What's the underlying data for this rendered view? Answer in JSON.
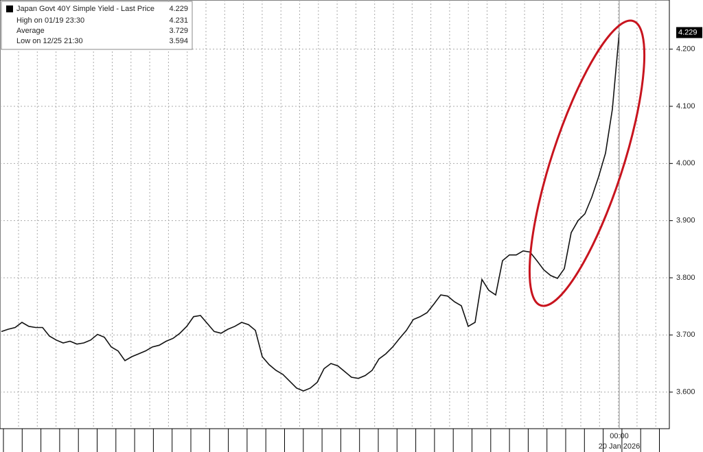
{
  "chart_data": {
    "type": "line",
    "legend": {
      "title": "Japan Govt 40Y Simple Yield - Last Price",
      "last": 4.229,
      "rows": [
        {
          "label": "High on 01/19 23:30",
          "value": 4.231
        },
        {
          "label": "Average",
          "value": 3.729
        },
        {
          "label": "Low on 12/25 21:30",
          "value": 3.594
        }
      ]
    },
    "date_label": "20 Jan 2026",
    "categories": [
      null,
      null,
      null,
      null,
      null,
      null,
      null,
      null,
      null,
      null,
      null,
      null,
      null,
      null,
      null,
      null,
      null,
      null,
      null,
      null,
      null,
      null,
      null,
      null,
      null,
      null,
      null,
      null,
      null,
      null,
      null,
      null,
      null,
      null,
      null,
      null,
      null,
      null,
      null,
      null,
      null,
      null,
      null,
      null,
      null,
      null,
      null,
      null,
      null,
      null,
      null,
      null,
      null,
      null,
      null,
      null,
      null,
      null,
      null,
      null,
      null,
      null,
      null,
      null,
      null,
      null,
      null,
      null,
      null,
      null,
      null,
      null,
      null,
      null,
      null,
      null,
      null,
      null,
      null,
      null,
      null,
      null,
      null,
      null,
      null,
      null,
      null,
      null,
      null,
      null,
      "00:00"
    ],
    "values": [
      3.706,
      3.71,
      3.713,
      3.722,
      3.715,
      3.713,
      3.713,
      3.698,
      3.691,
      3.686,
      3.689,
      3.684,
      3.686,
      3.691,
      3.701,
      3.696,
      3.679,
      3.672,
      3.655,
      3.662,
      3.667,
      3.672,
      3.679,
      3.682,
      3.689,
      3.694,
      3.703,
      3.715,
      3.732,
      3.734,
      3.72,
      3.706,
      3.703,
      3.71,
      3.715,
      3.722,
      3.718,
      3.708,
      3.662,
      3.648,
      3.638,
      3.631,
      3.619,
      3.607,
      3.602,
      3.607,
      3.617,
      3.641,
      3.65,
      3.646,
      3.636,
      3.626,
      3.624,
      3.629,
      3.638,
      3.658,
      3.667,
      3.679,
      3.694,
      3.708,
      3.727,
      3.732,
      3.739,
      3.754,
      3.77,
      3.768,
      3.758,
      3.751,
      3.715,
      3.722,
      3.797,
      3.778,
      3.77,
      3.83,
      3.84,
      3.84,
      3.847,
      3.845,
      3.83,
      3.814,
      3.804,
      3.799,
      3.816,
      3.879,
      3.9,
      3.912,
      3.941,
      3.977,
      4.018,
      4.095,
      4.229
    ],
    "color": "#111111",
    "ylim": [
      3.536,
      4.286
    ],
    "yticks": [
      {
        "value": 3.6,
        "label": "3.600"
      },
      {
        "value": 3.7,
        "label": "3.700"
      },
      {
        "value": 3.8,
        "label": "3.800"
      },
      {
        "value": 3.9,
        "label": "3.900"
      },
      {
        "value": 4.0,
        "label": "4.000"
      },
      {
        "value": 4.1,
        "label": "4.100"
      },
      {
        "value": 4.2,
        "label": "4.200"
      }
    ],
    "grid": true
  }
}
